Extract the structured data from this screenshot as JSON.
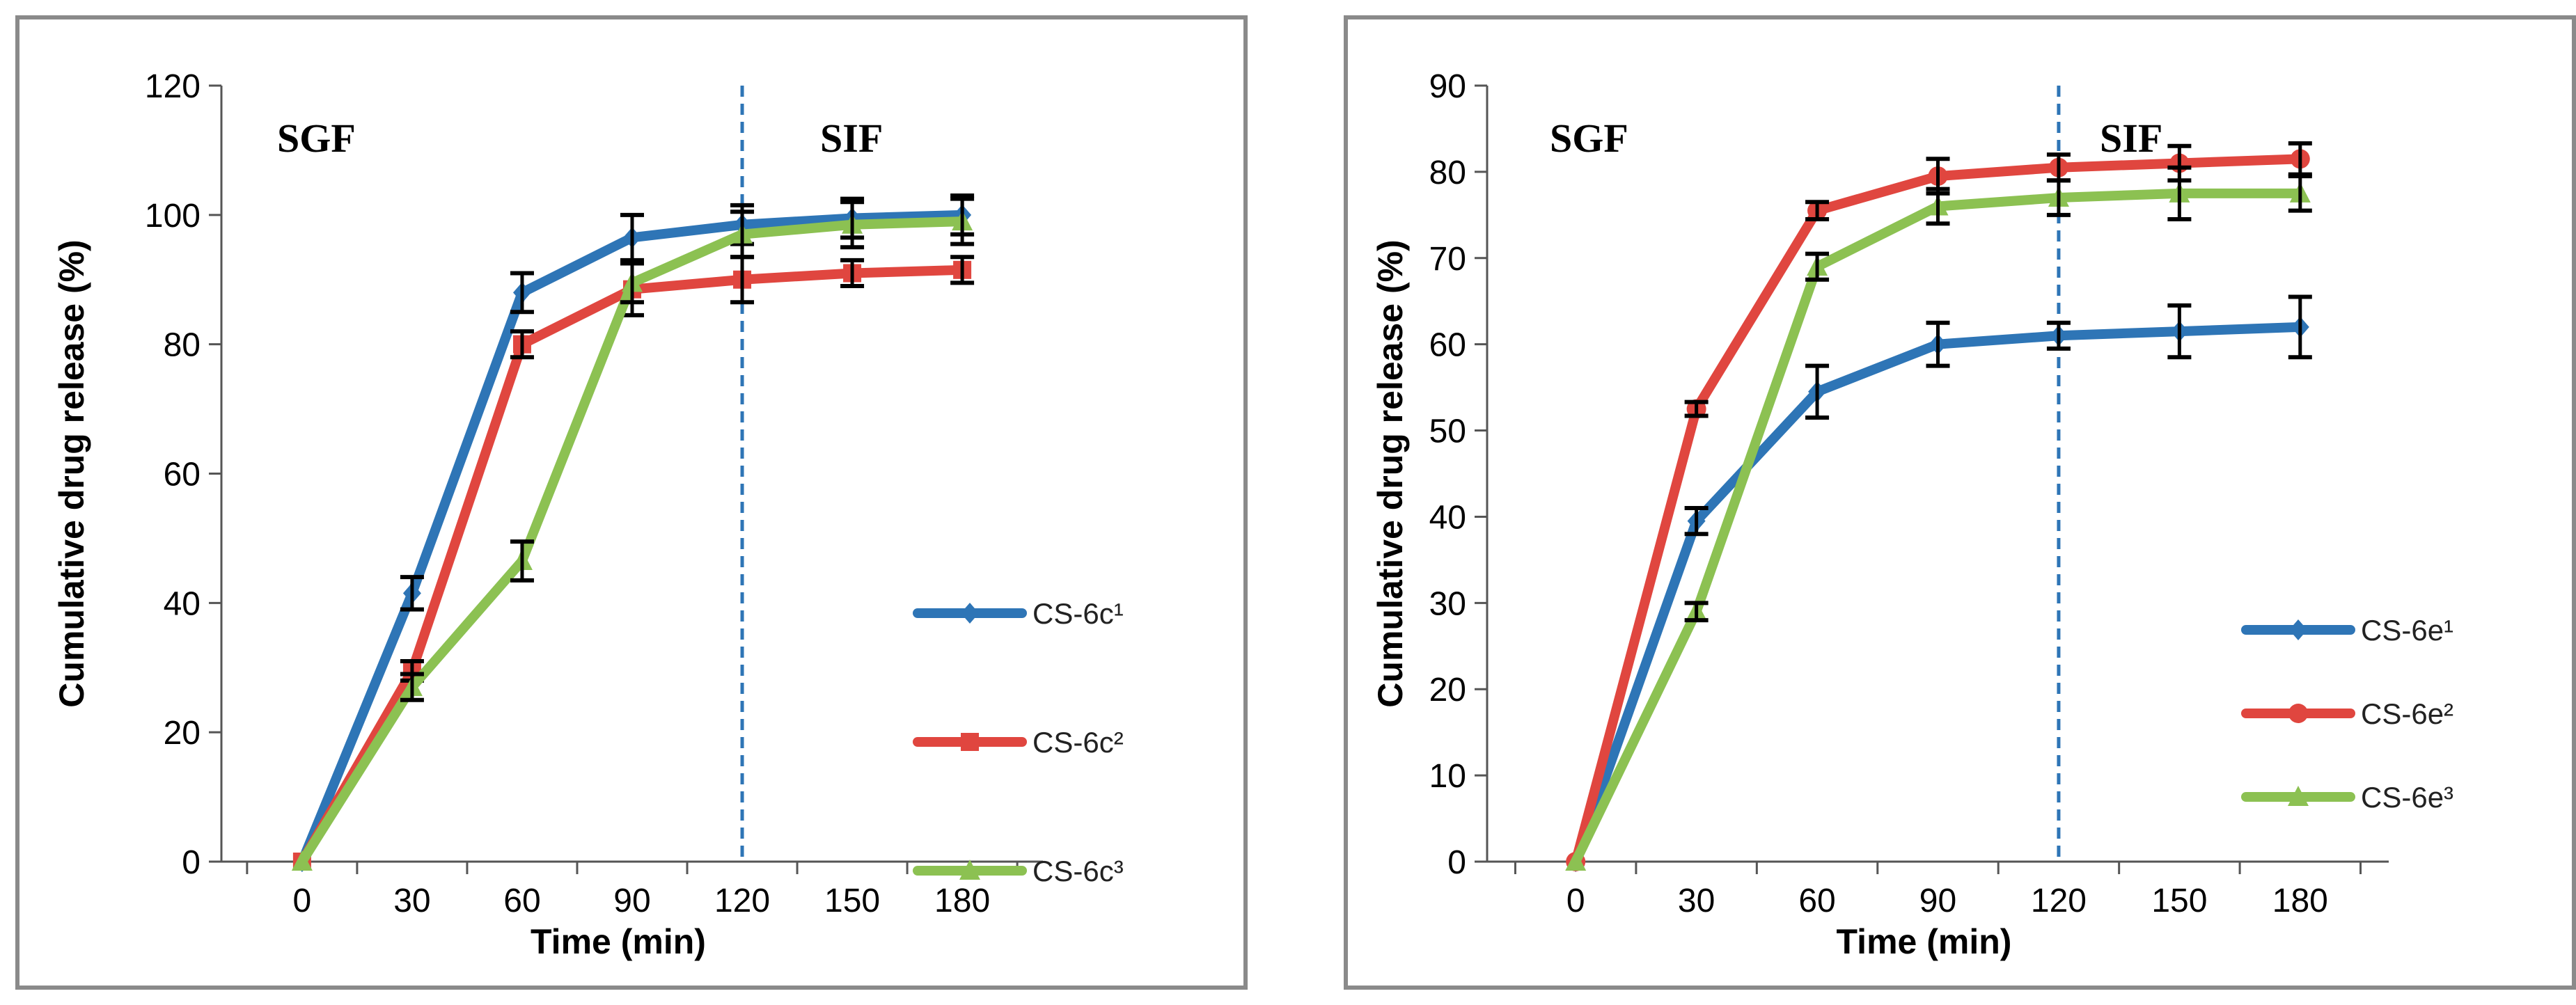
{
  "chart_data": [
    {
      "type": "line",
      "xlabel": "Time (min)",
      "ylabel": "Cumulative drug release (%)",
      "x": [
        0,
        30,
        60,
        90,
        120,
        150,
        180
      ],
      "xticks": [
        "0",
        "30",
        "60",
        "90",
        "120",
        "150",
        "180"
      ],
      "ylim": [
        0,
        120
      ],
      "yticks": [
        "0",
        "20",
        "40",
        "60",
        "80",
        "100",
        "120"
      ],
      "phase_labels": [
        "SGF",
        "SIF"
      ],
      "divider_x": 120,
      "legend_position": "right",
      "series": [
        {
          "name": "CS-6c¹",
          "color": "#2e75b6",
          "marker": "diamond",
          "values": [
            0,
            41.5,
            88,
            96.5,
            98.5,
            99.5,
            100
          ],
          "errors": [
            0,
            2.5,
            3,
            3.5,
            3,
            3,
            3
          ]
        },
        {
          "name": "CS-6c²",
          "color": "#e0463f",
          "marker": "square",
          "values": [
            0,
            29.5,
            80,
            88.5,
            90,
            91,
            91.5
          ],
          "errors": [
            0,
            1.5,
            2,
            4,
            3.5,
            2,
            2
          ]
        },
        {
          "name": "CS-6c³",
          "color": "#8cc152",
          "marker": "triangle",
          "values": [
            0,
            27,
            46.5,
            89.5,
            97,
            98.5,
            99
          ],
          "errors": [
            0,
            2,
            3,
            3,
            3.5,
            3.5,
            3.5
          ]
        }
      ]
    },
    {
      "type": "line",
      "xlabel": "Time (min)",
      "ylabel": "Cumulative drug release (%)",
      "x": [
        0,
        30,
        60,
        90,
        120,
        150,
        180
      ],
      "xticks": [
        "0",
        "30",
        "60",
        "90",
        "120",
        "150",
        "180"
      ],
      "ylim": [
        0,
        90
      ],
      "yticks": [
        "0",
        "10",
        "20",
        "30",
        "40",
        "50",
        "60",
        "70",
        "80",
        "90"
      ],
      "phase_labels": [
        "SGF",
        "SIF"
      ],
      "divider_x": 120,
      "legend_position": "right",
      "series": [
        {
          "name": "CS-6e¹",
          "color": "#2e75b6",
          "marker": "diamond",
          "values": [
            0,
            39.5,
            54.5,
            60,
            61,
            61.5,
            62
          ],
          "errors": [
            0,
            1.5,
            3,
            2.5,
            1.5,
            3,
            3.5
          ]
        },
        {
          "name": "CS-6e²",
          "color": "#e0463f",
          "marker": "circle",
          "values": [
            0,
            52.5,
            75.5,
            79.5,
            80.5,
            81,
            81.5
          ],
          "errors": [
            0,
            0.8,
            1,
            2,
            1.5,
            2,
            1.8
          ]
        },
        {
          "name": "CS-6e³",
          "color": "#8cc152",
          "marker": "triangle",
          "values": [
            0,
            29,
            69,
            76,
            77,
            77.5,
            77.5
          ],
          "errors": [
            0,
            1,
            1.5,
            2,
            2,
            3,
            2
          ]
        }
      ]
    }
  ]
}
